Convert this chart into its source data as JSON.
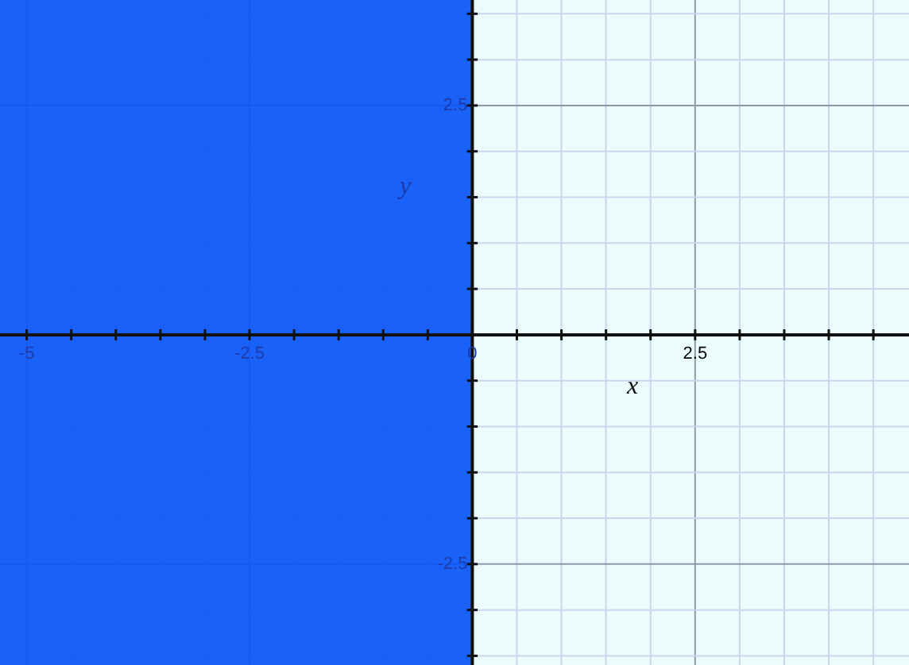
{
  "chart_data": {
    "type": "line",
    "xlabel": "x",
    "ylabel": "y",
    "xlim": [
      -5.3,
      4.9
    ],
    "ylim": [
      -3.6,
      3.65
    ],
    "xticks": [
      -5,
      {
        "value": -4.5,
        "label": null
      },
      {
        "value": -4,
        "label": null
      },
      {
        "value": -3.5,
        "label": null
      },
      {
        "value": -3,
        "label": null
      },
      -2.5,
      {
        "value": -2,
        "label": null
      },
      {
        "value": -1.5,
        "label": null
      },
      {
        "value": -1,
        "label": null
      },
      {
        "value": -0.5,
        "label": null
      },
      0,
      {
        "value": 0.5,
        "label": null
      },
      {
        "value": 1,
        "label": null
      },
      {
        "value": 1.5,
        "label": null
      },
      {
        "value": 2,
        "label": null
      },
      2.5,
      {
        "value": 3,
        "label": null
      },
      {
        "value": 3.5,
        "label": null
      },
      {
        "value": 4,
        "label": null
      },
      {
        "value": 4.5,
        "label": null
      }
    ],
    "yticks": [
      {
        "value": -3.5,
        "label": null
      },
      {
        "value": -3,
        "label": null
      },
      -2.5,
      {
        "value": -2,
        "label": null
      },
      {
        "value": -1.5,
        "label": null
      },
      {
        "value": -1,
        "label": null
      },
      {
        "value": -0.5,
        "label": null
      },
      {
        "value": 0.5,
        "label": null
      },
      {
        "value": 1,
        "label": null
      },
      {
        "value": 1.5,
        "label": null
      },
      {
        "value": 2,
        "label": null
      },
      2.5,
      {
        "value": 3,
        "label": null
      },
      {
        "value": 3.5,
        "label": null
      }
    ],
    "bands": [
      {
        "axis": "x",
        "from": -5.3,
        "to": 0,
        "color": "#0a55f7"
      }
    ],
    "grid": true
  }
}
